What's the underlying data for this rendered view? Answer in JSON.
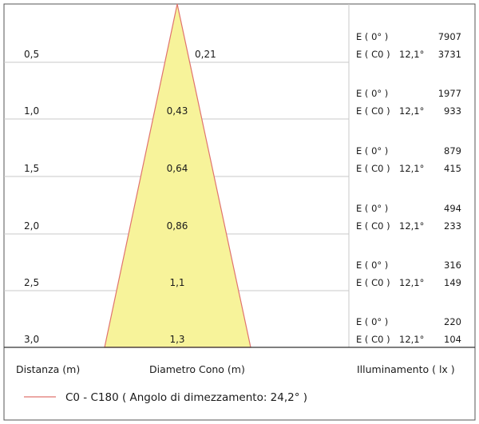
{
  "chart_data": {
    "type": "diagram",
    "description_rows": [
      {
        "distance": "0,5",
        "diameter": "0,21",
        "e0_label": "E ( 0° )",
        "e0_value": "7907",
        "ec0_label": "E ( C0 )",
        "angle": "12,1°",
        "ec0_value": "3731"
      },
      {
        "distance": "1,0",
        "diameter": "0,43",
        "e0_label": "E ( 0° )",
        "e0_value": "1977",
        "ec0_label": "E ( C0 )",
        "angle": "12,1°",
        "ec0_value": "933"
      },
      {
        "distance": "1,5",
        "diameter": "0,64",
        "e0_label": "E ( 0° )",
        "e0_value": "879",
        "ec0_label": "E ( C0 )",
        "angle": "12,1°",
        "ec0_value": "415"
      },
      {
        "distance": "2,0",
        "diameter": "0,86",
        "e0_label": "E ( 0° )",
        "e0_value": "494",
        "ec0_label": "E ( C0 )",
        "angle": "12,1°",
        "ec0_value": "233"
      },
      {
        "distance": "2,5",
        "diameter": "1,1",
        "e0_label": "E ( 0° )",
        "e0_value": "316",
        "ec0_label": "E ( C0 )",
        "angle": "12,1°",
        "ec0_value": "149"
      },
      {
        "distance": "3,0",
        "diameter": "1,3",
        "e0_label": "E ( 0° )",
        "e0_value": "220",
        "ec0_label": "E ( C0 )",
        "angle": "12,1°",
        "ec0_value": "104"
      }
    ],
    "headers": {
      "distance": "Distanza (m)",
      "diameter": "Diametro Cono (m)",
      "illuminance": "Illuminamento ( lx )"
    },
    "legend": {
      "label": "C0 - C180  ( Angolo di dimezzamento: 24,2° )",
      "line_color": "#e0736e"
    },
    "colors": {
      "cone_fill": "#f7f39a",
      "cone_stroke": "#e0736e",
      "grid": "#c8c8c8",
      "frame": "#555555"
    }
  }
}
